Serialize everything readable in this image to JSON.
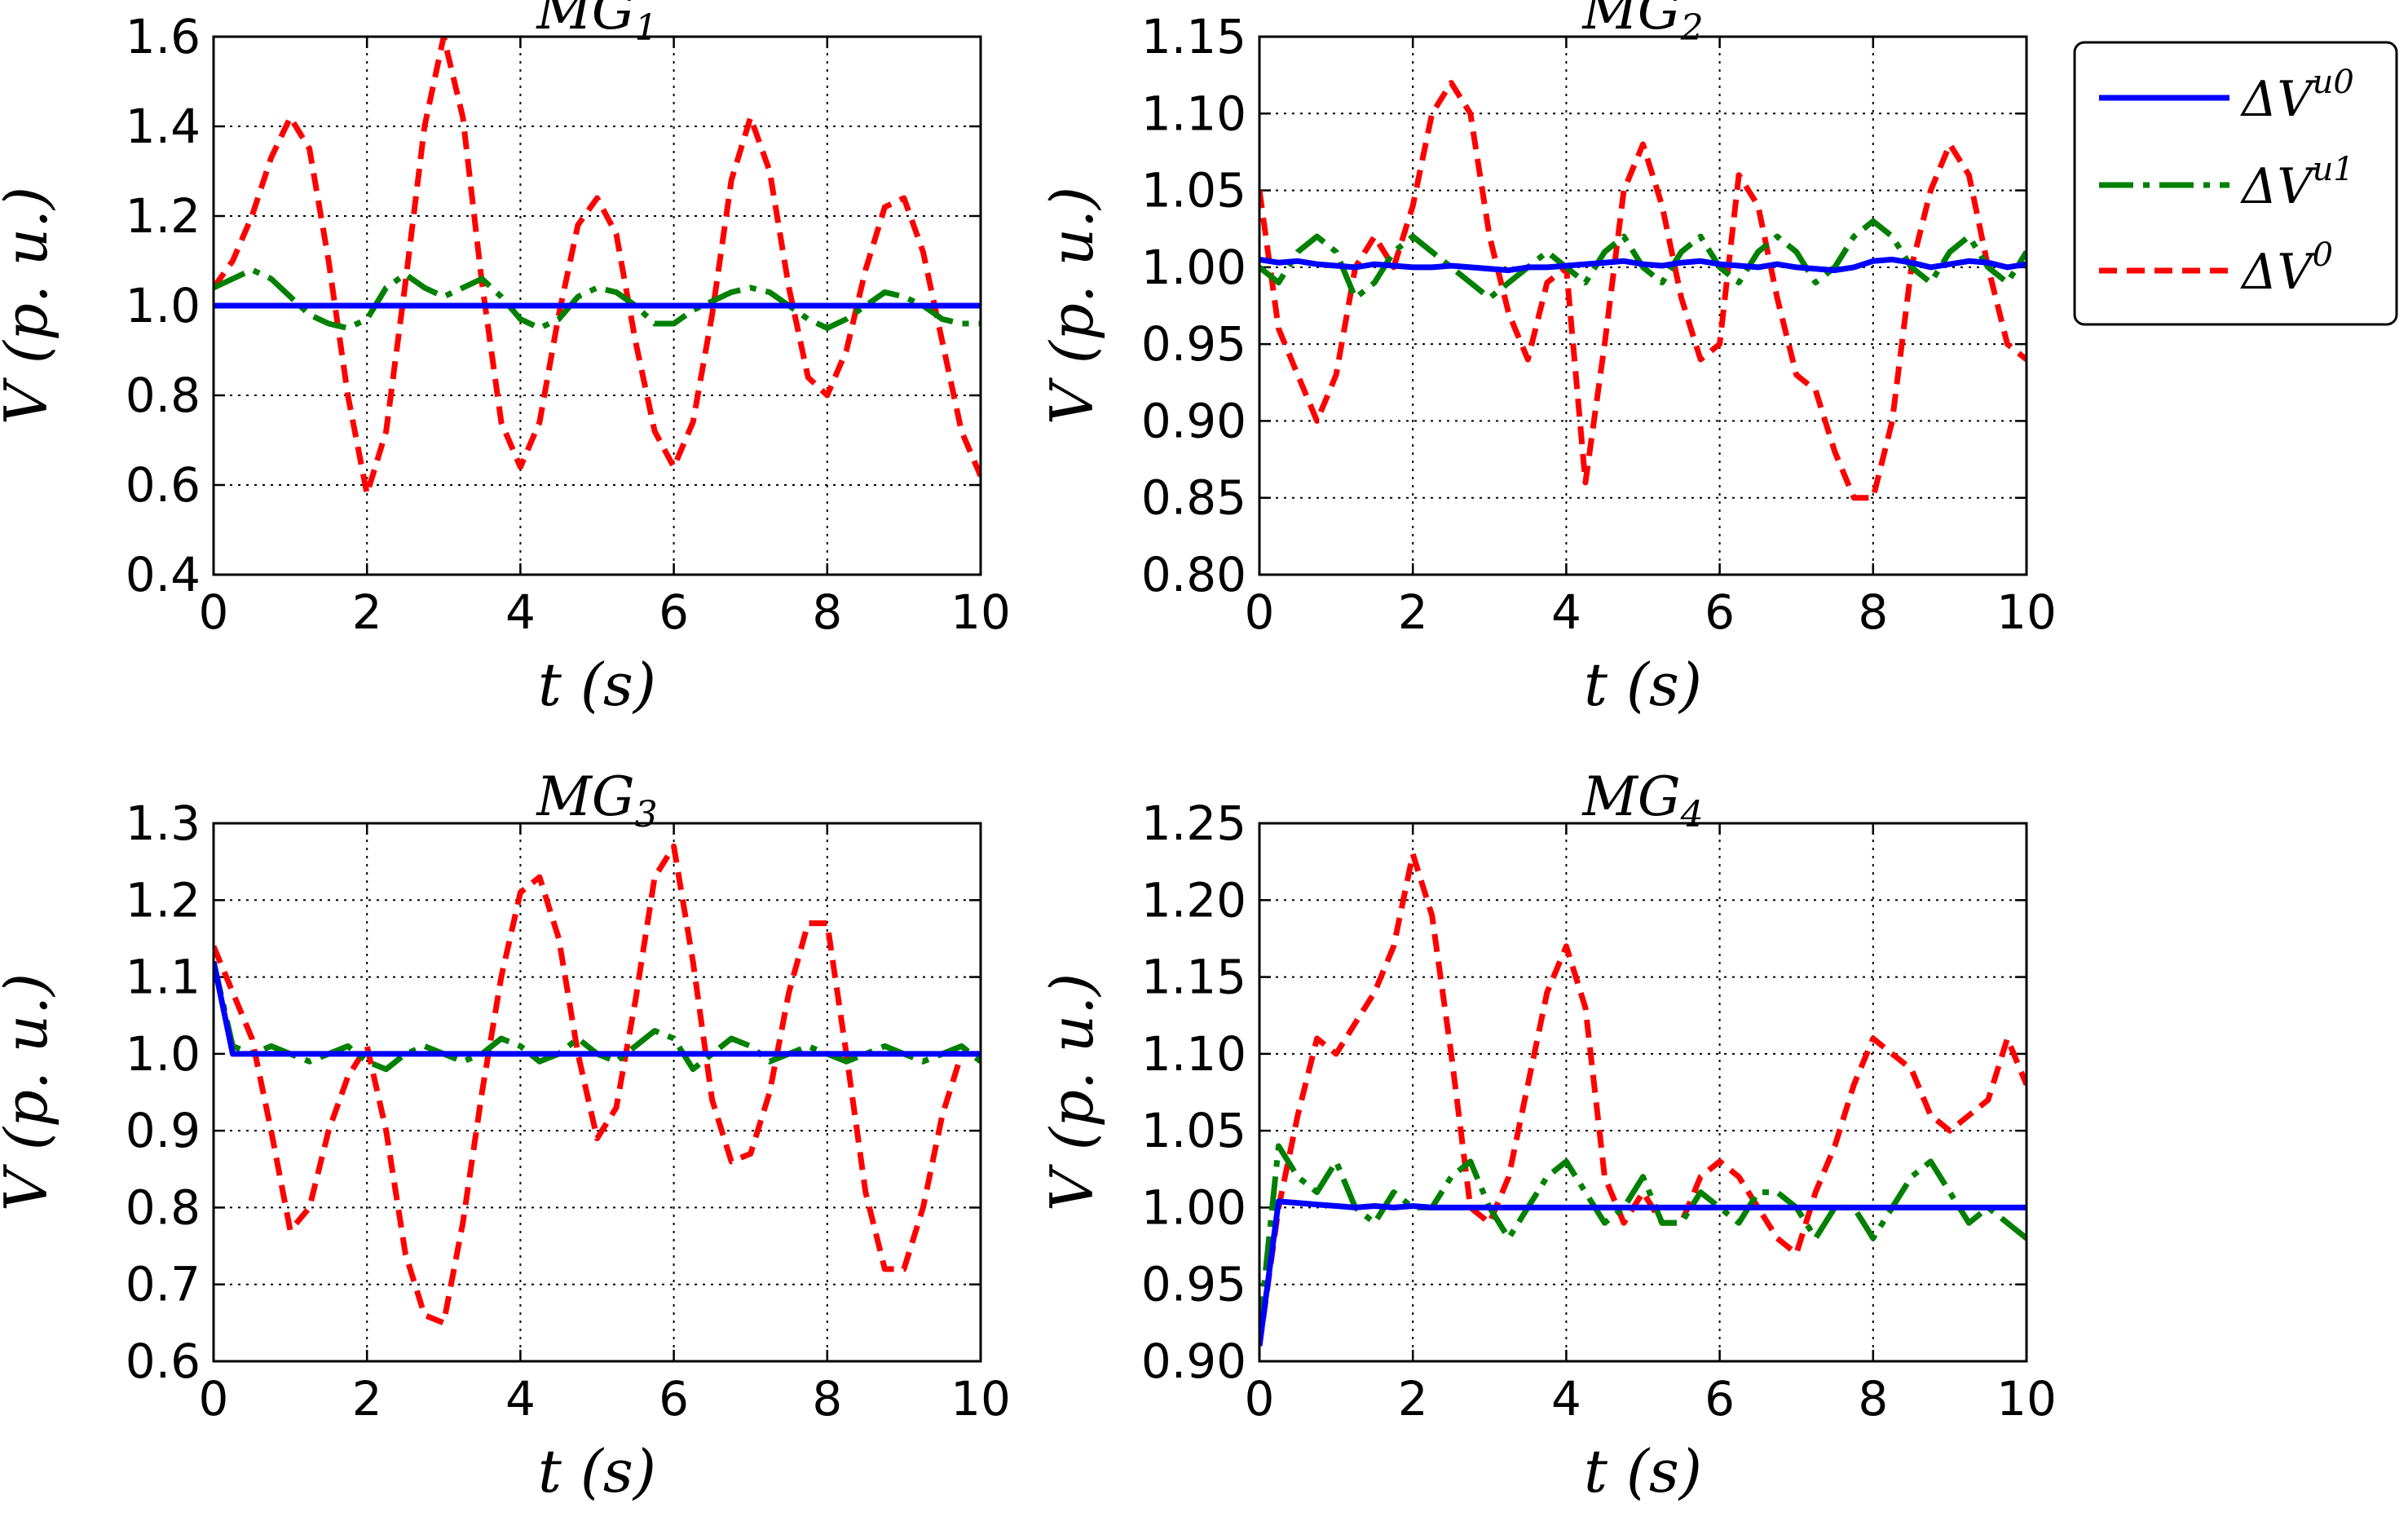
{
  "legend": {
    "position": "upper right, outside plot area",
    "entries": [
      {
        "series": "u0",
        "base": "ΔV",
        "sup": "u0",
        "color": "#0000ff",
        "style": "solid"
      },
      {
        "series": "u1",
        "base": "ΔV",
        "sup": "u1",
        "color": "#008000",
        "style": "dashdot"
      },
      {
        "series": "v0",
        "base": "ΔV",
        "sup": "0",
        "color": "#ff0000",
        "style": "dashed"
      }
    ]
  },
  "chart_data": [
    {
      "type": "line",
      "title": {
        "base": "MG",
        "sub": "1"
      },
      "xlabel": "t (s)",
      "ylabel": "V (p. u.)",
      "xlim": [
        0,
        10
      ],
      "ylim": [
        0.4,
        1.6
      ],
      "xticks": [
        "0",
        "2",
        "4",
        "6",
        "8",
        "10"
      ],
      "yticks": [
        "0.4",
        "0.6",
        "0.8",
        "1.0",
        "1.2",
        "1.4",
        "1.6"
      ],
      "grid": true,
      "x": [
        0,
        0.25,
        0.5,
        0.75,
        1.0,
        1.25,
        1.5,
        1.75,
        2.0,
        2.25,
        2.5,
        2.75,
        3.0,
        3.25,
        3.5,
        3.75,
        4.0,
        4.25,
        4.5,
        4.75,
        5.0,
        5.25,
        5.5,
        5.75,
        6.0,
        6.25,
        6.5,
        6.75,
        7.0,
        7.25,
        7.5,
        7.75,
        8.0,
        8.25,
        8.5,
        8.75,
        9.0,
        9.25,
        9.5,
        9.75,
        10.0
      ],
      "series": [
        {
          "key": "u0",
          "values": [
            1.0,
            1.0,
            1.0,
            1.0,
            1.0,
            1.0,
            1.0,
            1.0,
            1.0,
            1.0,
            1.0,
            1.0,
            1.0,
            1.0,
            1.0,
            1.0,
            1.0,
            1.0,
            1.0,
            1.0,
            1.0,
            1.0,
            1.0,
            1.0,
            1.0,
            1.0,
            1.0,
            1.0,
            1.0,
            1.0,
            1.0,
            1.0,
            1.0,
            1.0,
            1.0,
            1.0,
            1.0,
            1.0,
            1.0,
            1.0,
            1.0
          ]
        },
        {
          "key": "u1",
          "values": [
            1.04,
            1.06,
            1.08,
            1.06,
            1.02,
            0.98,
            0.96,
            0.95,
            0.97,
            1.04,
            1.07,
            1.04,
            1.02,
            1.04,
            1.06,
            1.02,
            0.97,
            0.95,
            0.97,
            1.02,
            1.04,
            1.03,
            1.0,
            0.96,
            0.96,
            0.99,
            1.01,
            1.03,
            1.04,
            1.03,
            1.0,
            0.97,
            0.95,
            0.97,
            1.0,
            1.03,
            1.02,
            1.0,
            0.97,
            0.96,
            0.96
          ]
        },
        {
          "key": "v0",
          "values": [
            1.04,
            1.1,
            1.2,
            1.33,
            1.42,
            1.35,
            1.1,
            0.8,
            0.58,
            0.72,
            1.05,
            1.4,
            1.6,
            1.42,
            1.05,
            0.74,
            0.64,
            0.74,
            0.98,
            1.18,
            1.24,
            1.16,
            0.92,
            0.72,
            0.64,
            0.74,
            0.98,
            1.28,
            1.42,
            1.3,
            1.04,
            0.84,
            0.8,
            0.9,
            1.08,
            1.22,
            1.24,
            1.12,
            0.92,
            0.72,
            0.62
          ]
        }
      ]
    },
    {
      "type": "line",
      "title": {
        "base": "MG",
        "sub": "2"
      },
      "xlabel": "t (s)",
      "ylabel": "V (p. u.)",
      "xlim": [
        0,
        10
      ],
      "ylim": [
        0.8,
        1.15
      ],
      "xticks": [
        "0",
        "2",
        "4",
        "6",
        "8",
        "10"
      ],
      "yticks": [
        "0.80",
        "0.85",
        "0.90",
        "0.95",
        "1.00",
        "1.05",
        "1.10",
        "1.15"
      ],
      "grid": true,
      "x": [
        0,
        0.25,
        0.5,
        0.75,
        1.0,
        1.25,
        1.5,
        1.75,
        2.0,
        2.25,
        2.5,
        2.75,
        3.0,
        3.25,
        3.5,
        3.75,
        4.0,
        4.25,
        4.5,
        4.75,
        5.0,
        5.25,
        5.5,
        5.75,
        6.0,
        6.25,
        6.5,
        6.75,
        7.0,
        7.25,
        7.5,
        7.75,
        8.0,
        8.25,
        8.5,
        8.75,
        9.0,
        9.25,
        9.5,
        9.75,
        10.0
      ],
      "series": [
        {
          "key": "u0",
          "values": [
            1.005,
            1.003,
            1.004,
            1.002,
            1.001,
            1.0,
            1.002,
            1.001,
            1.0,
            1.0,
            1.001,
            1.0,
            0.999,
            0.998,
            1.0,
            1.0,
            1.001,
            1.002,
            1.003,
            1.004,
            1.002,
            1.001,
            1.003,
            1.004,
            1.002,
            1.001,
            1.0,
            1.002,
            1.0,
            0.999,
            0.998,
            1.0,
            1.004,
            1.005,
            1.003,
            1.0,
            1.002,
            1.004,
            1.003,
            1.0,
            1.002
          ]
        },
        {
          "key": "u1",
          "values": [
            1.0,
            0.99,
            1.01,
            1.02,
            1.01,
            0.98,
            0.99,
            1.01,
            1.02,
            1.01,
            1.0,
            0.99,
            0.98,
            0.99,
            1.0,
            1.01,
            1.0,
            0.99,
            1.01,
            1.02,
            1.0,
            0.99,
            1.01,
            1.02,
            1.0,
            0.99,
            1.01,
            1.02,
            1.01,
            0.99,
            1.0,
            1.02,
            1.03,
            1.02,
            1.0,
            0.99,
            1.01,
            1.02,
            1.0,
            0.99,
            1.01
          ]
        },
        {
          "key": "v0",
          "values": [
            1.05,
            0.96,
            0.93,
            0.9,
            0.93,
            1.0,
            1.02,
            1.0,
            1.04,
            1.1,
            1.12,
            1.1,
            1.02,
            0.97,
            0.94,
            0.99,
            1.0,
            0.86,
            0.95,
            1.05,
            1.08,
            1.04,
            0.98,
            0.94,
            0.95,
            1.06,
            1.04,
            0.98,
            0.93,
            0.92,
            0.88,
            0.85,
            0.85,
            0.9,
            1.0,
            1.05,
            1.08,
            1.06,
            1.0,
            0.95,
            0.94
          ]
        }
      ]
    },
    {
      "type": "line",
      "title": {
        "base": "MG",
        "sub": "3"
      },
      "xlabel": "t (s)",
      "ylabel": "V (p. u.)",
      "xlim": [
        0,
        10
      ],
      "ylim": [
        0.6,
        1.3
      ],
      "xticks": [
        "0",
        "2",
        "4",
        "6",
        "8",
        "10"
      ],
      "yticks": [
        "0.6",
        "0.7",
        "0.8",
        "0.9",
        "1.0",
        "1.1",
        "1.2",
        "1.3"
      ],
      "grid": true,
      "x": [
        0,
        0.25,
        0.5,
        0.75,
        1.0,
        1.25,
        1.5,
        1.75,
        2.0,
        2.25,
        2.5,
        2.75,
        3.0,
        3.25,
        3.5,
        3.75,
        4.0,
        4.25,
        4.5,
        4.75,
        5.0,
        5.25,
        5.5,
        5.75,
        6.0,
        6.25,
        6.5,
        6.75,
        7.0,
        7.25,
        7.5,
        7.75,
        8.0,
        8.25,
        8.5,
        8.75,
        9.0,
        9.25,
        9.5,
        9.75,
        10.0
      ],
      "series": [
        {
          "key": "u0",
          "values": [
            1.12,
            1.0,
            1.0,
            1.0,
            1.0,
            1.0,
            1.0,
            1.0,
            1.0,
            1.0,
            1.0,
            1.0,
            1.0,
            1.0,
            1.0,
            1.0,
            1.0,
            1.0,
            1.0,
            1.0,
            1.0,
            1.0,
            1.0,
            1.0,
            1.0,
            1.0,
            1.0,
            1.0,
            1.0,
            1.0,
            1.0,
            1.0,
            1.0,
            1.0,
            1.0,
            1.0,
            1.0,
            1.0,
            1.0,
            1.0,
            1.0
          ]
        },
        {
          "key": "u1",
          "values": [
            1.12,
            1.01,
            1.0,
            1.01,
            1.0,
            0.99,
            1.0,
            1.01,
            0.99,
            0.98,
            1.0,
            1.01,
            1.0,
            0.99,
            1.0,
            1.02,
            1.01,
            0.99,
            1.0,
            1.02,
            1.0,
            0.99,
            1.01,
            1.03,
            1.02,
            0.98,
            1.0,
            1.02,
            1.01,
            0.99,
            1.0,
            1.01,
            1.0,
            0.99,
            1.0,
            1.01,
            1.0,
            0.99,
            1.0,
            1.01,
            0.99
          ]
        },
        {
          "key": "v0",
          "values": [
            1.14,
            1.08,
            1.02,
            0.9,
            0.77,
            0.8,
            0.9,
            0.97,
            1.01,
            0.9,
            0.74,
            0.66,
            0.65,
            0.78,
            0.95,
            1.1,
            1.21,
            1.23,
            1.15,
            1.0,
            0.89,
            0.93,
            1.07,
            1.23,
            1.27,
            1.12,
            0.94,
            0.86,
            0.87,
            0.95,
            1.08,
            1.17,
            1.17,
            1.0,
            0.82,
            0.72,
            0.72,
            0.8,
            0.92,
            1.0,
            1.0
          ]
        }
      ]
    },
    {
      "type": "line",
      "title": {
        "base": "MG",
        "sub": "4"
      },
      "xlabel": "t (s)",
      "ylabel": "V (p. u.)",
      "xlim": [
        0,
        10
      ],
      "ylim": [
        0.9,
        1.25
      ],
      "xticks": [
        "0",
        "2",
        "4",
        "6",
        "8",
        "10"
      ],
      "yticks": [
        "0.90",
        "0.95",
        "1.00",
        "1.05",
        "1.10",
        "1.15",
        "1.20",
        "1.25"
      ],
      "grid": true,
      "x": [
        0,
        0.25,
        0.5,
        0.75,
        1.0,
        1.25,
        1.5,
        1.75,
        2.0,
        2.25,
        2.5,
        2.75,
        3.0,
        3.25,
        3.5,
        3.75,
        4.0,
        4.25,
        4.5,
        4.75,
        5.0,
        5.25,
        5.5,
        5.75,
        6.0,
        6.25,
        6.5,
        6.75,
        7.0,
        7.25,
        7.5,
        7.75,
        8.0,
        8.25,
        8.5,
        8.75,
        9.0,
        9.25,
        9.5,
        9.75,
        10.0
      ],
      "series": [
        {
          "key": "u0",
          "values": [
            0.91,
            1.004,
            1.003,
            1.002,
            1.001,
            1.0,
            1.001,
            1.0,
            1.001,
            1.0,
            1.0,
            1.0,
            1.0,
            1.0,
            1.0,
            1.0,
            1.0,
            1.0,
            1.0,
            1.0,
            1.0,
            1.0,
            1.0,
            1.0,
            1.0,
            1.0,
            1.0,
            1.0,
            1.0,
            1.0,
            1.0,
            1.0,
            1.0,
            1.0,
            1.0,
            1.0,
            1.0,
            1.0,
            1.0,
            1.0,
            1.0
          ]
        },
        {
          "key": "u1",
          "values": [
            0.92,
            1.04,
            1.02,
            1.01,
            1.03,
            1.0,
            0.99,
            1.01,
            1.0,
            1.0,
            1.02,
            1.03,
            1.0,
            0.98,
            1.0,
            1.02,
            1.03,
            1.01,
            0.99,
            1.0,
            1.02,
            0.99,
            0.99,
            1.01,
            1.0,
            0.99,
            1.01,
            1.01,
            1.0,
            0.98,
            1.0,
            1.0,
            0.98,
            1.0,
            1.02,
            1.03,
            1.01,
            0.99,
            1.0,
            0.99,
            0.98
          ]
        },
        {
          "key": "v0",
          "values": [
            0.91,
            1.0,
            1.06,
            1.11,
            1.1,
            1.12,
            1.14,
            1.17,
            1.23,
            1.19,
            1.1,
            1.0,
            0.99,
            1.02,
            1.08,
            1.14,
            1.17,
            1.13,
            1.02,
            0.99,
            1.01,
            0.99,
            0.99,
            1.02,
            1.03,
            1.02,
            1.0,
            0.98,
            0.97,
            1.01,
            1.04,
            1.08,
            1.11,
            1.1,
            1.09,
            1.06,
            1.05,
            1.06,
            1.07,
            1.11,
            1.08
          ]
        }
      ]
    }
  ]
}
